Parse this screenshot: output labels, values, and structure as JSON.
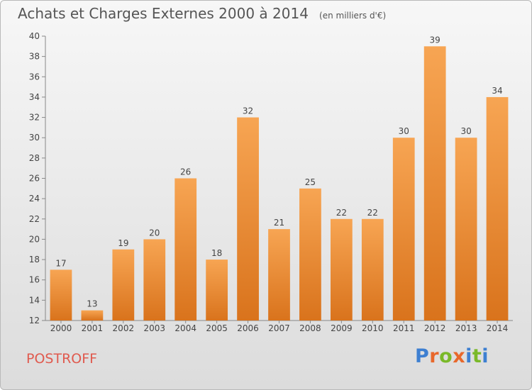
{
  "header": {
    "title": "Achats et Charges Externes 2000 à 2014",
    "subtitle": "(en milliers d'€)"
  },
  "footer": {
    "commune": "POSTROFF",
    "logo_text": "Proxiti"
  },
  "colors": {
    "bar_top": "#f7a553",
    "bar_bottom": "#d9731c",
    "commune": "#e05a4e"
  },
  "chart_data": {
    "type": "bar",
    "title": "Achats et Charges Externes 2000 à 2014",
    "subtitle": "(en milliers d'€)",
    "xlabel": "",
    "ylabel": "",
    "categories": [
      "2000",
      "2001",
      "2002",
      "2003",
      "2004",
      "2005",
      "2006",
      "2007",
      "2008",
      "2009",
      "2010",
      "2011",
      "2012",
      "2013",
      "2014"
    ],
    "values": [
      17,
      13,
      19,
      20,
      26,
      18,
      32,
      21,
      25,
      22,
      22,
      30,
      39,
      30,
      34
    ],
    "ylim": [
      12,
      40
    ],
    "yticks": [
      12,
      14,
      16,
      18,
      20,
      22,
      24,
      26,
      28,
      30,
      32,
      34,
      36,
      38,
      40
    ],
    "grid": false,
    "legend": "none"
  }
}
